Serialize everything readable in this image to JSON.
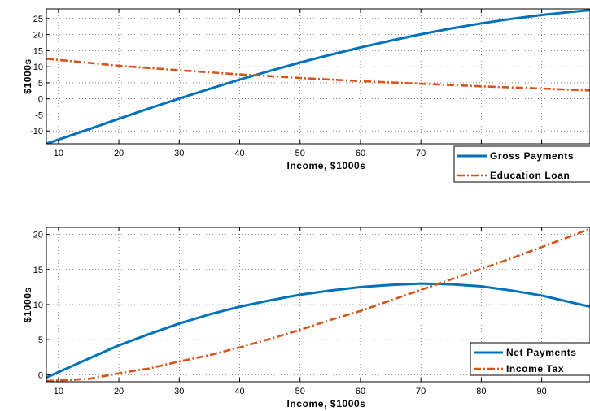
{
  "chart_data": [
    {
      "type": "line",
      "xlabel": "Income, $1000s",
      "ylabel": "$1000s",
      "xlim": [
        8,
        98
      ],
      "ylim": [
        -14,
        28
      ],
      "xticks": [
        10,
        20,
        30,
        40,
        50,
        60,
        70,
        80,
        90
      ],
      "yticks": [
        -10,
        -5,
        0,
        5,
        10,
        15,
        20,
        25
      ],
      "grid": true,
      "legend_position": "bottom-right",
      "series": [
        {
          "name": "Gross Payments",
          "color": "#0072BD",
          "style": "solid",
          "x": [
            8,
            15,
            20,
            25,
            30,
            35,
            40,
            45,
            50,
            55,
            60,
            65,
            70,
            75,
            80,
            85,
            90,
            95,
            98
          ],
          "y": [
            -14,
            -9.5,
            -6.2,
            -3.0,
            0.1,
            3.1,
            6.0,
            8.7,
            11.3,
            13.7,
            16.0,
            18.1,
            20.1,
            21.9,
            23.5,
            24.9,
            26.1,
            27.1,
            27.6
          ]
        },
        {
          "name": "Education Loan",
          "color": "#D95319",
          "style": "dashdot",
          "x": [
            8,
            20,
            30,
            40,
            50,
            60,
            70,
            80,
            90,
            98
          ],
          "y": [
            12.5,
            10.3,
            8.9,
            7.6,
            6.5,
            5.5,
            4.7,
            3.9,
            3.2,
            2.6
          ]
        }
      ]
    },
    {
      "type": "line",
      "xlabel": "Income, $1000s",
      "ylabel": "$1000s",
      "xlim": [
        8,
        98
      ],
      "ylim": [
        -1,
        21
      ],
      "xticks": [
        10,
        20,
        30,
        40,
        50,
        60,
        70,
        80,
        90
      ],
      "yticks": [
        0,
        5,
        10,
        15,
        20
      ],
      "grid": true,
      "legend_position": "bottom-right",
      "series": [
        {
          "name": "Net Payments",
          "color": "#0072BD",
          "style": "solid",
          "x": [
            8,
            15,
            20,
            25,
            30,
            35,
            40,
            45,
            50,
            55,
            60,
            65,
            70,
            75,
            80,
            85,
            90,
            95,
            98
          ],
          "y": [
            -0.4,
            2.3,
            4.2,
            5.8,
            7.3,
            8.6,
            9.7,
            10.6,
            11.4,
            12.0,
            12.5,
            12.8,
            13.0,
            12.9,
            12.6,
            12.0,
            11.3,
            10.3,
            9.7
          ]
        },
        {
          "name": "Income Tax",
          "color": "#D95319",
          "style": "dashdot",
          "x": [
            8,
            15,
            20,
            25,
            30,
            35,
            40,
            45,
            50,
            55,
            60,
            65,
            70,
            75,
            80,
            85,
            90,
            95,
            98
          ],
          "y": [
            -0.9,
            -0.6,
            0.2,
            0.9,
            1.9,
            2.8,
            3.9,
            5.1,
            6.4,
            7.8,
            9.1,
            10.6,
            12.1,
            13.6,
            15.1,
            16.6,
            18.2,
            19.8,
            20.8
          ]
        }
      ]
    }
  ]
}
